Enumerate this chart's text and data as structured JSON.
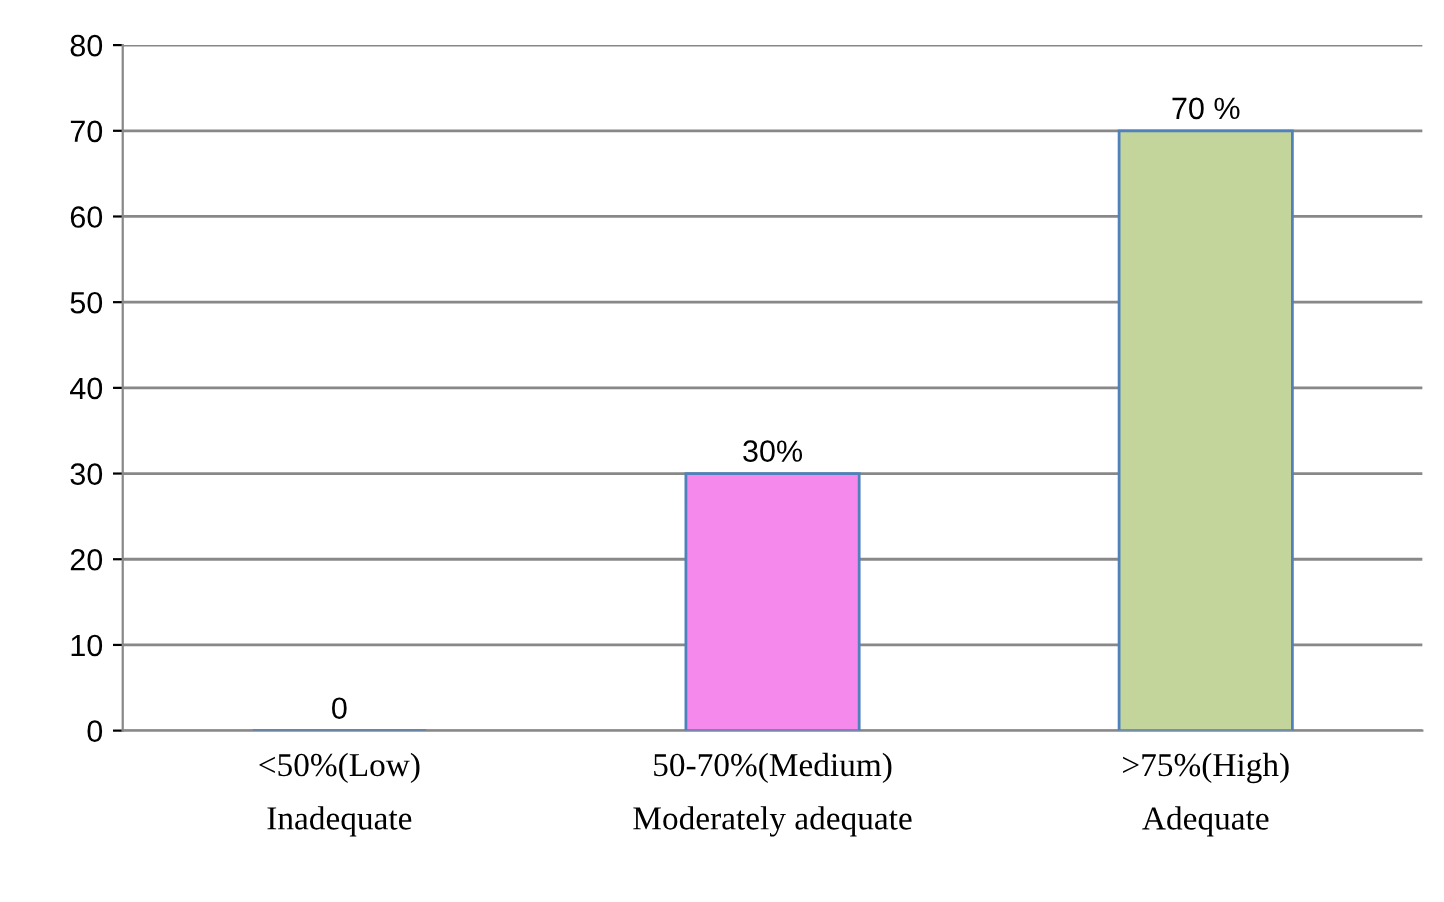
{
  "chart_data": {
    "type": "bar",
    "categories": [
      "<50%(Low)\nInadequate",
      "50-70%(Medium)\nModerately adequate",
      ">75%(High)\nAdequate"
    ],
    "values": [
      0,
      30,
      70
    ],
    "colors": [
      "#4f81bd",
      "#f589ec",
      "#c3d59b"
    ],
    "value_labels": [
      "0",
      "30%",
      "70 %"
    ],
    "ylim": [
      0,
      80
    ],
    "yticks": [
      0,
      10,
      20,
      30,
      40,
      50,
      60,
      70,
      80
    ],
    "grid": "y"
  }
}
